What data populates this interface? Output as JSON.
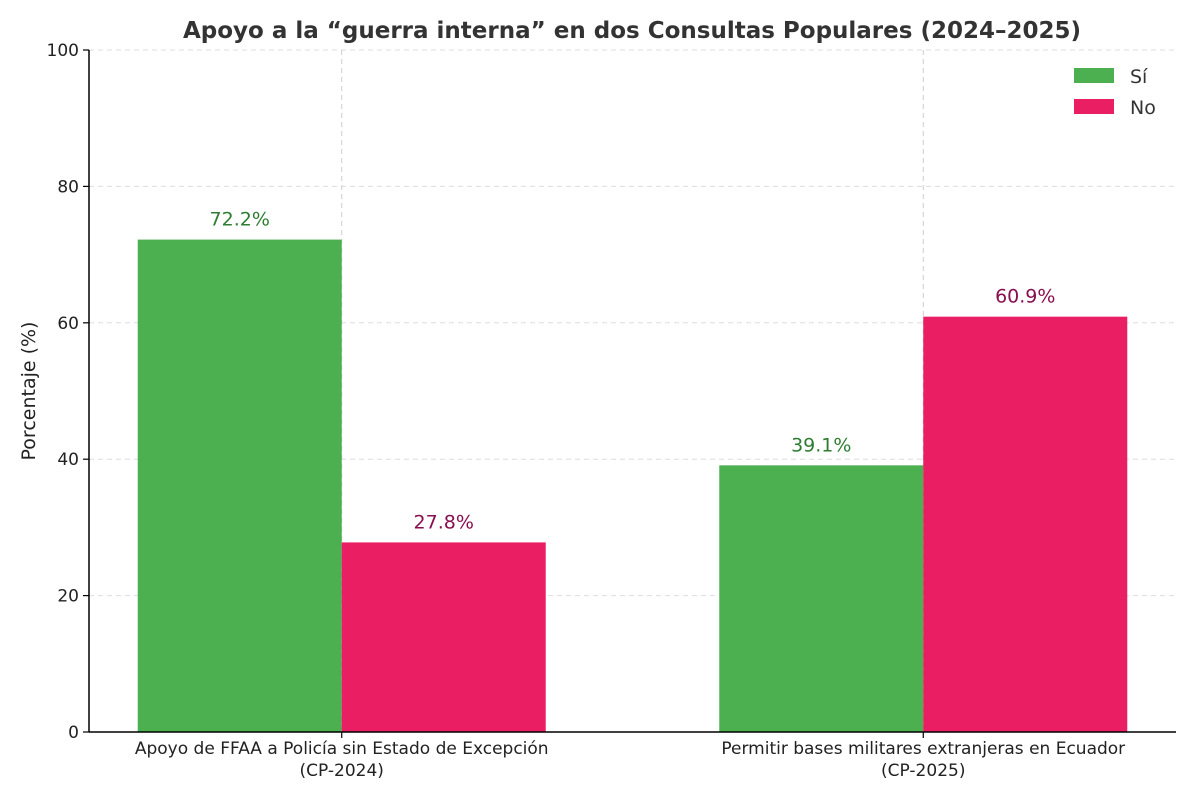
{
  "chart_data": {
    "type": "bar",
    "title": "Apoyo a la “guerra interna” en dos Consultas Populares (2024–2025)",
    "xlabel": "",
    "ylabel": "Porcentaje (%)",
    "ylim": [
      0,
      100
    ],
    "yticks": [
      0,
      20,
      40,
      60,
      80,
      100
    ],
    "grid": true,
    "legend_position": "top-right",
    "categories": [
      [
        "Apoyo de FFAA a Policía sin Estado de Excepción",
        "(CP-2024)"
      ],
      [
        "Permitir bases militares extranjeras en Ecuador",
        "(CP-2025)"
      ]
    ],
    "series": [
      {
        "name": "Sí",
        "values": [
          72.2,
          39.1
        ],
        "labels": [
          "72.2%",
          "39.1%"
        ],
        "color": "#4caf50",
        "label_color": "#2e7d32"
      },
      {
        "name": "No",
        "values": [
          27.8,
          60.9
        ],
        "labels": [
          "27.8%",
          "60.9%"
        ],
        "color": "#e91e63",
        "label_color": "#880e4f"
      }
    ]
  }
}
